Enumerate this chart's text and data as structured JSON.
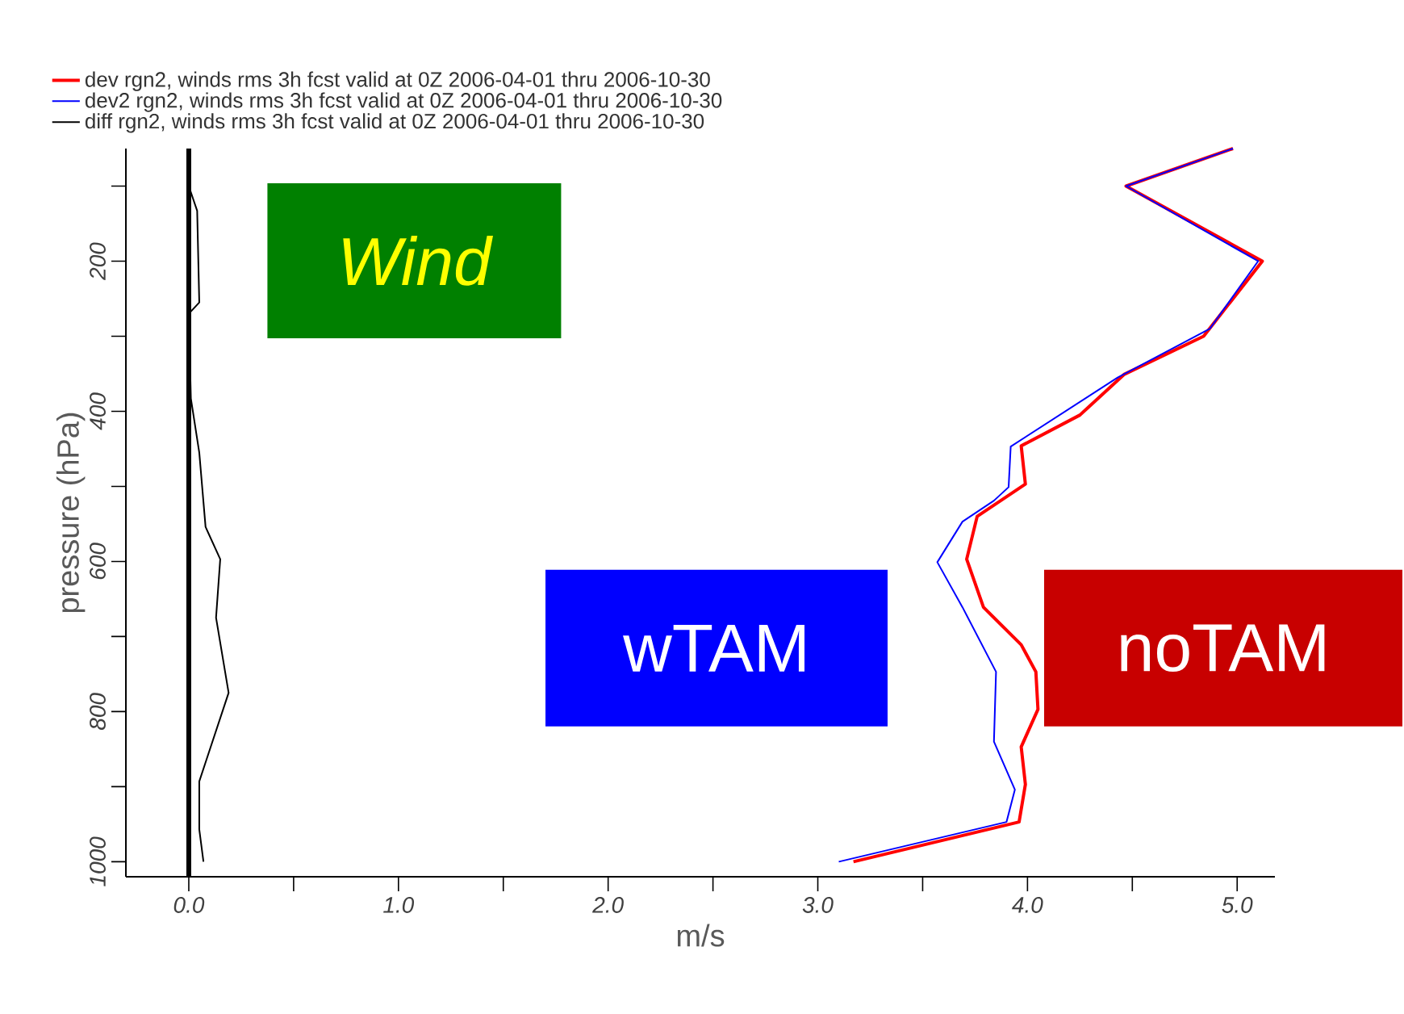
{
  "chart_data": {
    "type": "line",
    "xlabel": "m/s",
    "ylabel": "pressure (hPa)",
    "xlim": [
      -0.3,
      5.18
    ],
    "ylim": [
      1020,
      50
    ],
    "xticks": [
      {
        "value": 0,
        "label": "0.0"
      },
      {
        "value": 0.5,
        "label": null
      },
      {
        "value": 1,
        "label": "1.0"
      },
      {
        "value": 1.5,
        "label": null
      },
      {
        "value": 2,
        "label": "2.0"
      },
      {
        "value": 2.5,
        "label": null
      },
      {
        "value": 3,
        "label": "3.0"
      },
      {
        "value": 3.5,
        "label": null
      },
      {
        "value": 4,
        "label": "4.0"
      },
      {
        "value": 4.5,
        "label": null
      },
      {
        "value": 5,
        "label": "5.0"
      }
    ],
    "yticks": [
      {
        "value": 100,
        "label": null
      },
      200,
      {
        "value": 300,
        "label": null
      },
      400,
      {
        "value": 500,
        "label": null
      },
      600,
      {
        "value": 700,
        "label": null
      },
      800,
      {
        "value": 900,
        "label": null
      },
      1000
    ],
    "grid": false,
    "legend": "top left",
    "marker": "none",
    "line_style": "solid",
    "ref_lines": [
      {
        "axis": "x",
        "value": 0,
        "color": "#000000"
      }
    ],
    "annotations": [
      "Wind",
      "wTAM",
      "noTAM"
    ],
    "series": [
      {
        "name": "dev rgn2, winds rms 3h fcst valid at 0Z 2006-04-01 thru 2006-10-30",
        "color": "#ff0000",
        "x": [
          4.98,
          4.47,
          5.12,
          4.84,
          4.46,
          4.25,
          3.97,
          3.99,
          3.76,
          3.71,
          3.79,
          3.97,
          4.04,
          4.05,
          3.97,
          3.99,
          3.96,
          3.17
        ],
        "values": [
          50,
          100,
          200,
          300,
          351,
          405,
          446,
          497,
          540,
          597,
          661,
          711,
          747,
          797,
          847,
          897,
          947,
          1000
        ]
      },
      {
        "name": "dev2 rgn2, winds rms 3h fcst valid at 0Z 2006-04-01 thru 2006-10-30",
        "color": "#0000ff",
        "x": [
          4.98,
          4.47,
          5.1,
          4.87,
          4.43,
          3.92,
          3.91,
          3.84,
          3.69,
          3.57,
          3.69,
          3.85,
          3.84,
          3.94,
          3.9,
          3.1
        ],
        "values": [
          50,
          100,
          200,
          290,
          355,
          447,
          501,
          519,
          547,
          601,
          661,
          747,
          840,
          904,
          947,
          1000
        ]
      },
      {
        "name": "diff rgn2, winds rms 3h fcst valid at 0Z 2006-04-01 thru 2006-10-30",
        "color": "#000000",
        "x": [
          0,
          0,
          0.04,
          0.05,
          0,
          0.01,
          0.05,
          0.08,
          0.15,
          0.13,
          0.19,
          0.05,
          0.05,
          0.07
        ],
        "values": [
          50,
          100,
          133,
          255,
          270,
          383,
          455,
          554,
          597,
          675,
          775,
          893,
          957,
          1000
        ]
      }
    ]
  }
}
